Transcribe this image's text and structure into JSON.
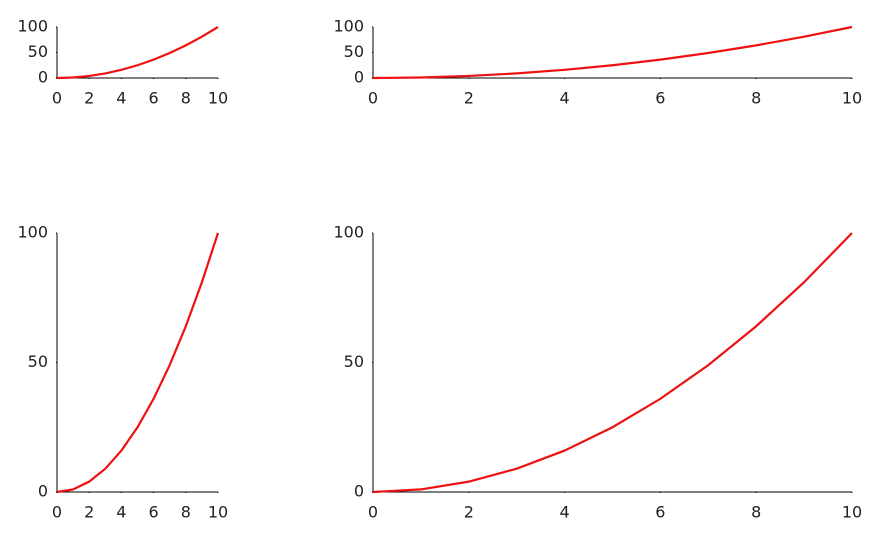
{
  "chart_data": [
    {
      "type": "line",
      "x": [
        0,
        1,
        2,
        3,
        4,
        5,
        6,
        7,
        8,
        9,
        10
      ],
      "series": [
        {
          "color": "#ee1111",
          "values": [
            0,
            1,
            4,
            9,
            16,
            25,
            36,
            49,
            64,
            81,
            100
          ]
        }
      ],
      "xlim": [
        0,
        10
      ],
      "ylim": [
        0,
        100
      ],
      "xticks": [
        0,
        2,
        4,
        6,
        8,
        10
      ],
      "yticks": [
        0,
        50,
        100
      ]
    },
    {
      "type": "line",
      "x": [
        0,
        1,
        2,
        3,
        4,
        5,
        6,
        7,
        8,
        9,
        10
      ],
      "series": [
        {
          "color": "#ee1111",
          "values": [
            0,
            1,
            4,
            9,
            16,
            25,
            36,
            49,
            64,
            81,
            100
          ]
        }
      ],
      "xlim": [
        0,
        10
      ],
      "ylim": [
        0,
        100
      ],
      "xticks": [
        0,
        2,
        4,
        6,
        8,
        10
      ],
      "yticks": [
        0,
        50,
        100
      ]
    },
    {
      "type": "line",
      "x": [
        0,
        1,
        2,
        3,
        4,
        5,
        6,
        7,
        8,
        9,
        10
      ],
      "series": [
        {
          "color": "#ee1111",
          "values": [
            0,
            1,
            4,
            9,
            16,
            25,
            36,
            49,
            64,
            81,
            100
          ]
        }
      ],
      "xlim": [
        0,
        10
      ],
      "ylim": [
        0,
        100
      ],
      "xticks": [
        0,
        2,
        4,
        6,
        8,
        10
      ],
      "yticks": [
        0,
        50,
        100
      ]
    },
    {
      "type": "line",
      "x": [
        0,
        1,
        2,
        3,
        4,
        5,
        6,
        7,
        8,
        9,
        10
      ],
      "series": [
        {
          "color": "#ee1111",
          "values": [
            0,
            1,
            4,
            9,
            16,
            25,
            36,
            49,
            64,
            81,
            100
          ]
        }
      ],
      "xlim": [
        0,
        10
      ],
      "ylim": [
        0,
        100
      ],
      "xticks": [
        0,
        2,
        4,
        6,
        8,
        10
      ],
      "yticks": [
        0,
        50,
        100
      ]
    }
  ]
}
